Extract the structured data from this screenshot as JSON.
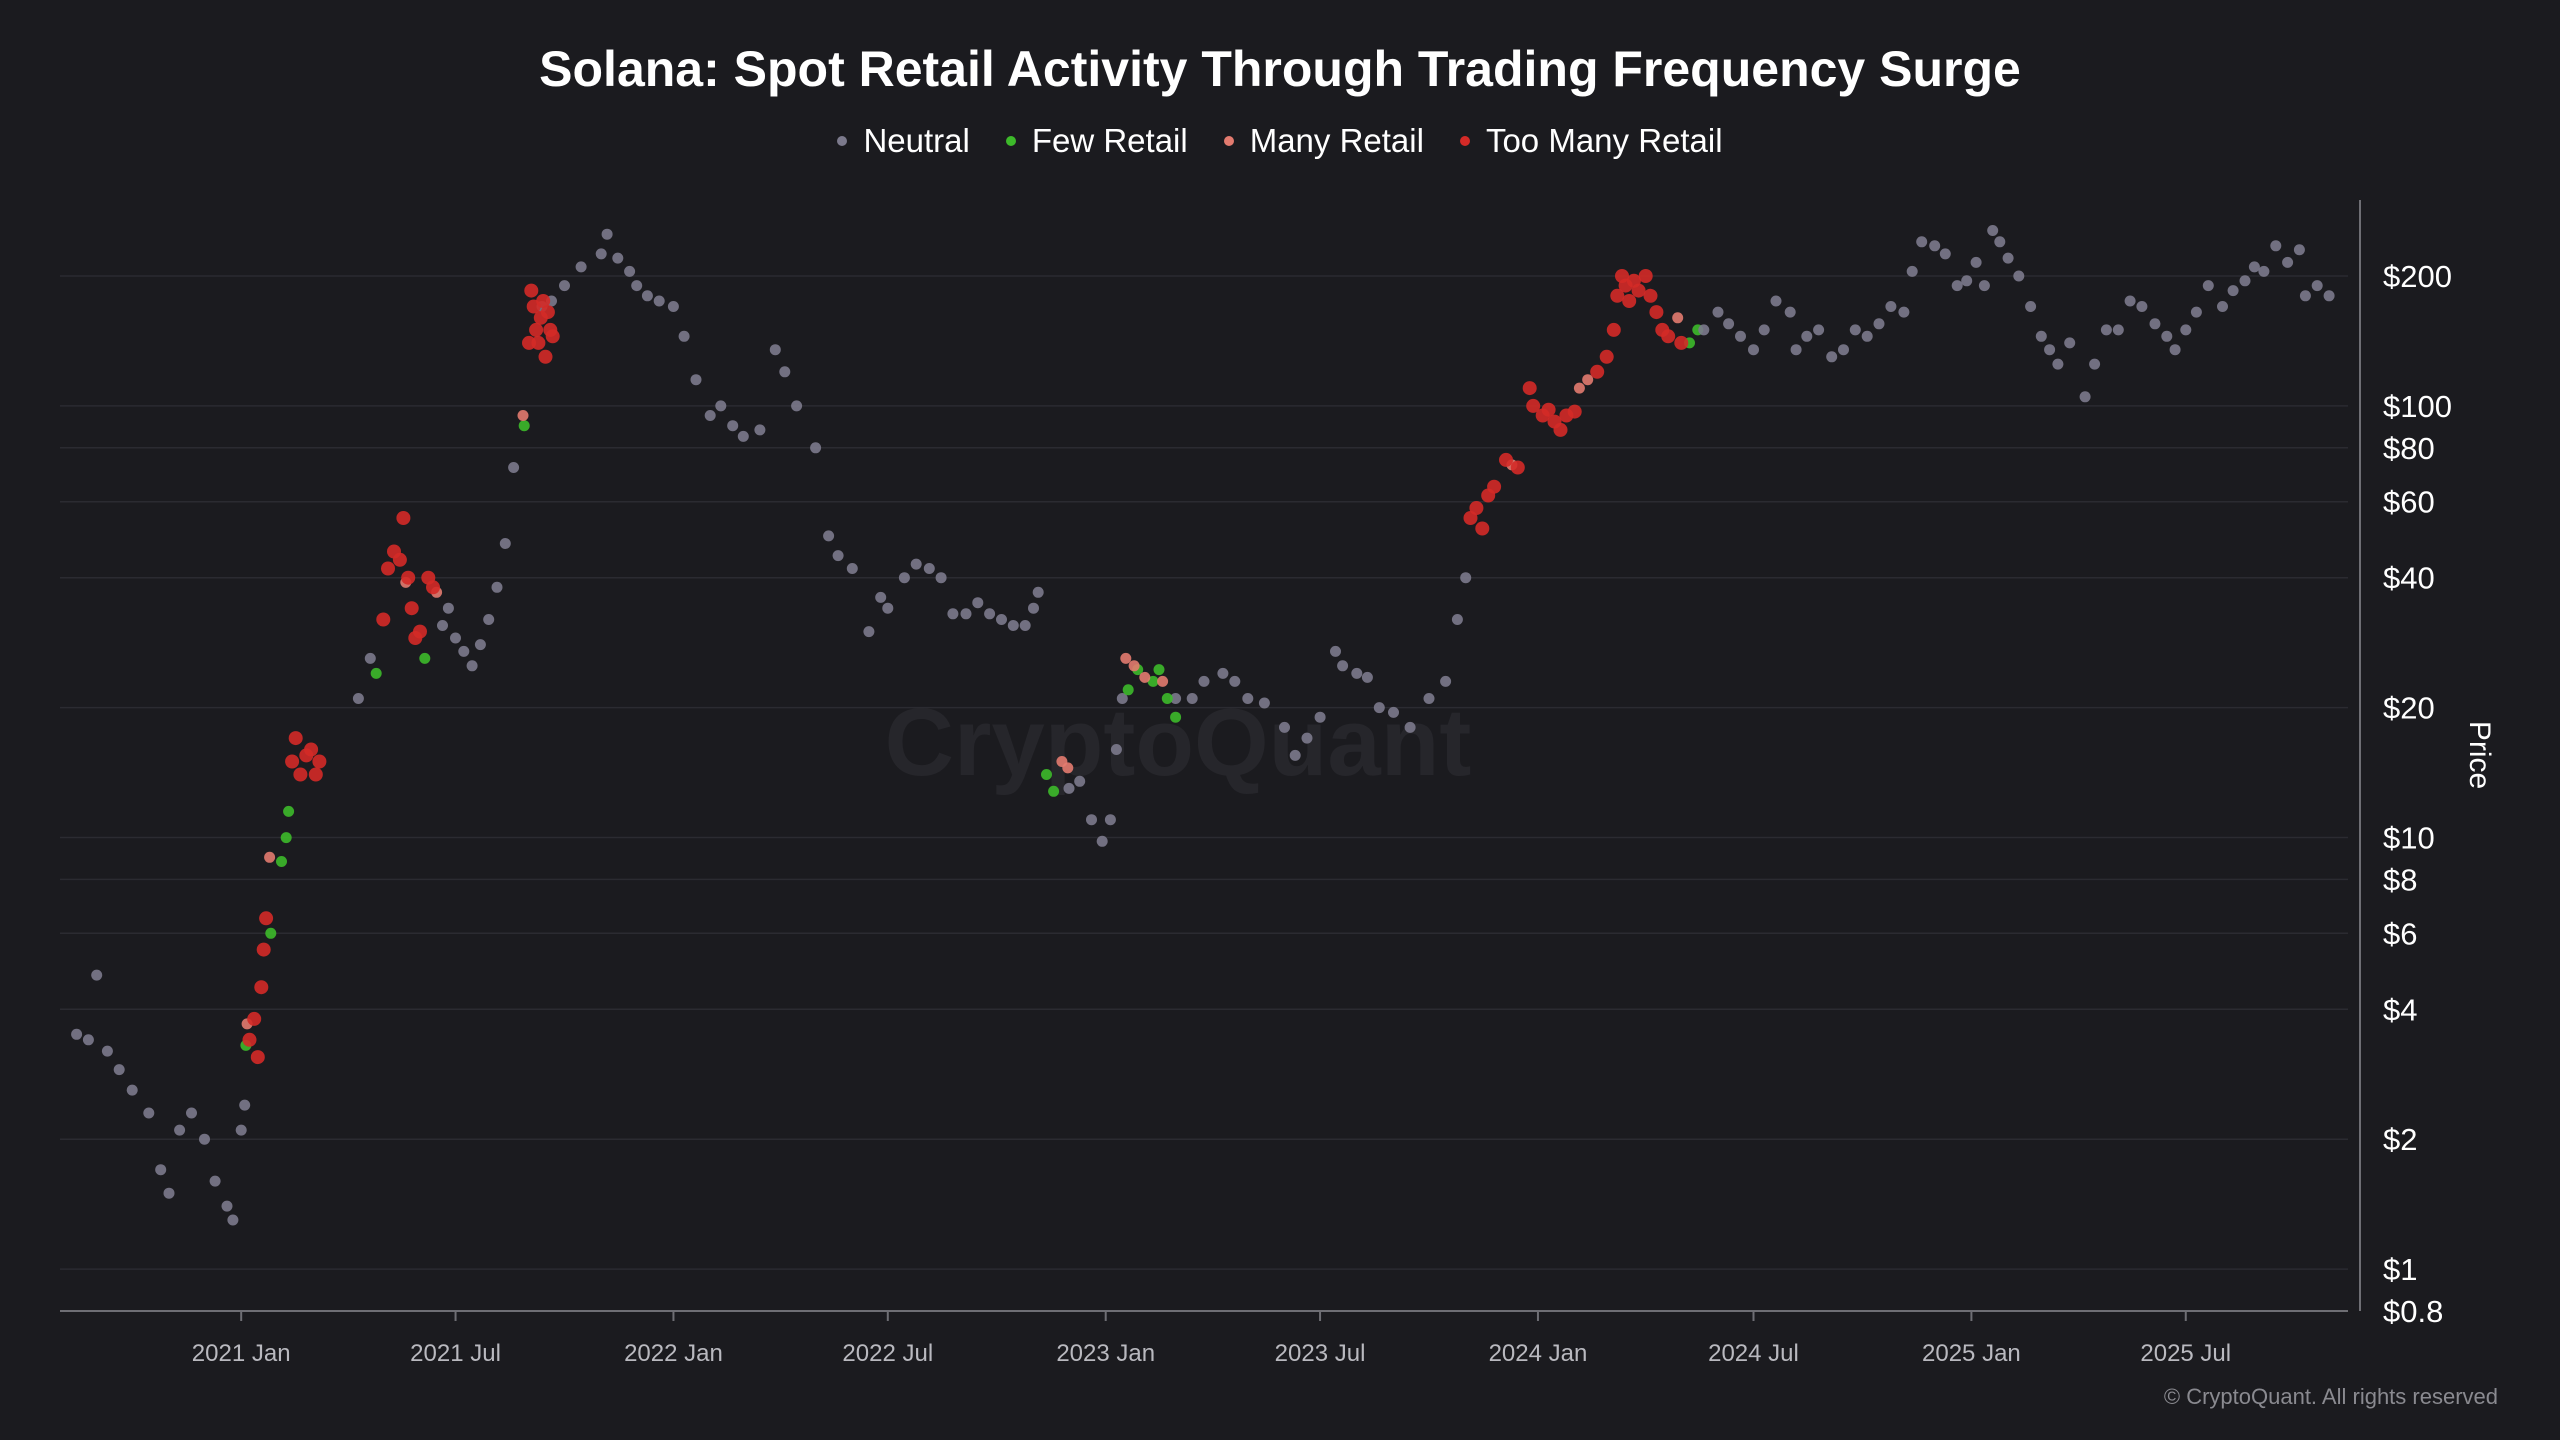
{
  "chart_data": {
    "type": "scatter",
    "title": "Solana: Spot Retail Activity Through Trading Frequency Surge",
    "ylabel": "Price",
    "xlabel": "",
    "y_scale": "log",
    "ylim": [
      0.8,
      300
    ],
    "xlim": [
      "2020-08-01",
      "2025-11-15"
    ],
    "grid": "horizontal",
    "legend_position": "top-center",
    "watermark": "CryptoQuant",
    "y_ticks": [
      {
        "value": 200,
        "label": "$200"
      },
      {
        "value": 100,
        "label": "$100"
      },
      {
        "value": 80,
        "label": "$80"
      },
      {
        "value": 60,
        "label": "$60"
      },
      {
        "value": 40,
        "label": "$40"
      },
      {
        "value": 20,
        "label": "$20"
      },
      {
        "value": 10,
        "label": "$10"
      },
      {
        "value": 8,
        "label": "$8"
      },
      {
        "value": 6,
        "label": "$6"
      },
      {
        "value": 4,
        "label": "$4"
      },
      {
        "value": 2,
        "label": "$2"
      },
      {
        "value": 1,
        "label": "$1"
      },
      {
        "value": 0.8,
        "label": "$0.8"
      }
    ],
    "x_ticks": [
      {
        "date": "2021-01-01",
        "label": "2021 Jan"
      },
      {
        "date": "2021-07-01",
        "label": "2021 Jul"
      },
      {
        "date": "2022-01-01",
        "label": "2022 Jan"
      },
      {
        "date": "2022-07-01",
        "label": "2022 Jul"
      },
      {
        "date": "2023-01-01",
        "label": "2023 Jan"
      },
      {
        "date": "2023-07-01",
        "label": "2023 Jul"
      },
      {
        "date": "2024-01-01",
        "label": "2024 Jan"
      },
      {
        "date": "2024-07-01",
        "label": "2024 Jul"
      },
      {
        "date": "2025-01-01",
        "label": "2025 Jan"
      },
      {
        "date": "2025-07-01",
        "label": "2025 Jul"
      }
    ],
    "series": [
      {
        "name": "Neutral",
        "color": "#7c7a8c",
        "points": [
          [
            "2020-08-15",
            3.5
          ],
          [
            "2020-08-25",
            3.4
          ],
          [
            "2020-09-01",
            4.8
          ],
          [
            "2020-09-10",
            3.2
          ],
          [
            "2020-09-20",
            2.9
          ],
          [
            "2020-10-01",
            2.6
          ],
          [
            "2020-10-15",
            2.3
          ],
          [
            "2020-10-25",
            1.7
          ],
          [
            "2020-11-01",
            1.5
          ],
          [
            "2020-11-10",
            2.1
          ],
          [
            "2020-11-20",
            2.3
          ],
          [
            "2020-12-01",
            2.0
          ],
          [
            "2020-12-10",
            1.6
          ],
          [
            "2020-12-20",
            1.4
          ],
          [
            "2020-12-25",
            1.3
          ],
          [
            "2021-01-01",
            2.1
          ],
          [
            "2021-01-04",
            2.4
          ],
          [
            "2021-04-10",
            21
          ],
          [
            "2021-04-20",
            26
          ],
          [
            "2021-06-20",
            31
          ],
          [
            "2021-06-25",
            34
          ],
          [
            "2021-07-01",
            29
          ],
          [
            "2021-07-08",
            27
          ],
          [
            "2021-07-15",
            25
          ],
          [
            "2021-07-22",
            28
          ],
          [
            "2021-07-29",
            32
          ],
          [
            "2021-08-05",
            38
          ],
          [
            "2021-08-12",
            48
          ],
          [
            "2021-08-19",
            72
          ],
          [
            "2021-09-12",
            170
          ],
          [
            "2021-09-20",
            175
          ],
          [
            "2021-10-01",
            190
          ],
          [
            "2021-10-15",
            210
          ],
          [
            "2021-11-01",
            225
          ],
          [
            "2021-11-06",
            250
          ],
          [
            "2021-11-15",
            220
          ],
          [
            "2021-11-25",
            205
          ],
          [
            "2021-12-01",
            190
          ],
          [
            "2021-12-10",
            180
          ],
          [
            "2021-12-20",
            175
          ],
          [
            "2022-01-01",
            170
          ],
          [
            "2022-01-10",
            145
          ],
          [
            "2022-01-20",
            115
          ],
          [
            "2022-02-01",
            95
          ],
          [
            "2022-02-10",
            100
          ],
          [
            "2022-02-20",
            90
          ],
          [
            "2022-03-01",
            85
          ],
          [
            "2022-03-15",
            88
          ],
          [
            "2022-03-28",
            135
          ],
          [
            "2022-04-05",
            120
          ],
          [
            "2022-04-15",
            100
          ],
          [
            "2022-05-01",
            80
          ],
          [
            "2022-05-12",
            50
          ],
          [
            "2022-05-20",
            45
          ],
          [
            "2022-06-01",
            42
          ],
          [
            "2022-06-15",
            30
          ],
          [
            "2022-06-25",
            36
          ],
          [
            "2022-07-01",
            34
          ],
          [
            "2022-07-15",
            40
          ],
          [
            "2022-07-25",
            43
          ],
          [
            "2022-08-05",
            42
          ],
          [
            "2022-08-15",
            40
          ],
          [
            "2022-08-25",
            33
          ],
          [
            "2022-09-05",
            33
          ],
          [
            "2022-09-15",
            35
          ],
          [
            "2022-09-25",
            33
          ],
          [
            "2022-10-05",
            32
          ],
          [
            "2022-10-15",
            31
          ],
          [
            "2022-10-25",
            31
          ],
          [
            "2022-11-01",
            34
          ],
          [
            "2022-11-05",
            37
          ],
          [
            "2022-12-01",
            13
          ],
          [
            "2022-12-10",
            13.5
          ],
          [
            "2022-12-20",
            11
          ],
          [
            "2022-12-29",
            9.8
          ],
          [
            "2023-01-05",
            11
          ],
          [
            "2023-01-10",
            16
          ],
          [
            "2023-01-15",
            21
          ],
          [
            "2023-03-01",
            21
          ],
          [
            "2023-03-15",
            21
          ],
          [
            "2023-03-25",
            23
          ],
          [
            "2023-04-10",
            24
          ],
          [
            "2023-04-20",
            23
          ],
          [
            "2023-05-01",
            21
          ],
          [
            "2023-05-15",
            20.5
          ],
          [
            "2023-06-01",
            18
          ],
          [
            "2023-06-10",
            15.5
          ],
          [
            "2023-06-20",
            17
          ],
          [
            "2023-07-01",
            19
          ],
          [
            "2023-07-14",
            27
          ],
          [
            "2023-07-20",
            25
          ],
          [
            "2023-08-01",
            24
          ],
          [
            "2023-08-10",
            23.5
          ],
          [
            "2023-08-20",
            20
          ],
          [
            "2023-09-01",
            19.5
          ],
          [
            "2023-09-15",
            18
          ],
          [
            "2023-10-01",
            21
          ],
          [
            "2023-10-15",
            23
          ],
          [
            "2023-10-25",
            32
          ],
          [
            "2023-11-01",
            40
          ]
        ]
      },
      {
        "name": "Few Retail",
        "color": "#3dba2a",
        "points": [
          [
            "2021-01-05",
            3.3
          ],
          [
            "2021-01-26",
            6.0
          ],
          [
            "2021-02-04",
            8.8
          ],
          [
            "2021-02-08",
            10.0
          ],
          [
            "2021-02-10",
            11.5
          ],
          [
            "2021-04-25",
            24
          ],
          [
            "2021-06-05",
            26
          ],
          [
            "2021-08-28",
            90
          ],
          [
            "2022-11-12",
            14
          ],
          [
            "2022-11-18",
            12.8
          ],
          [
            "2023-01-20",
            22
          ],
          [
            "2023-01-28",
            24.5
          ],
          [
            "2023-02-10",
            23
          ],
          [
            "2023-02-15",
            24.5
          ],
          [
            "2023-02-22",
            21
          ],
          [
            "2023-03-01",
            19
          ],
          [
            "2024-05-08",
            140
          ],
          [
            "2024-05-15",
            150
          ]
        ]
      },
      {
        "name": "Many Retail",
        "color": "#e37b6f",
        "points": [
          [
            "2021-01-06",
            3.7
          ],
          [
            "2021-01-25",
            9.0
          ],
          [
            "2021-05-20",
            39
          ],
          [
            "2021-06-15",
            37
          ],
          [
            "2021-08-27",
            95
          ],
          [
            "2022-11-25",
            15
          ],
          [
            "2022-11-30",
            14.5
          ],
          [
            "2023-01-18",
            26
          ],
          [
            "2023-01-25",
            25
          ],
          [
            "2023-02-03",
            23.5
          ],
          [
            "2023-02-18",
            23
          ],
          [
            "2023-12-10",
            73
          ],
          [
            "2024-02-05",
            110
          ],
          [
            "2024-02-12",
            115
          ],
          [
            "2024-04-28",
            160
          ]
        ]
      },
      {
        "name": "Too Many Retail",
        "color": "#d42a27",
        "points": [
          [
            "2021-01-08",
            3.4
          ],
          [
            "2021-01-12",
            3.8
          ],
          [
            "2021-01-15",
            3.1
          ],
          [
            "2021-01-18",
            4.5
          ],
          [
            "2021-01-20",
            5.5
          ],
          [
            "2021-01-22",
            6.5
          ],
          [
            "2021-02-13",
            15
          ],
          [
            "2021-02-16",
            17
          ],
          [
            "2021-02-20",
            14
          ],
          [
            "2021-02-25",
            15.5
          ],
          [
            "2021-03-01",
            16
          ],
          [
            "2021-03-05",
            14
          ],
          [
            "2021-03-08",
            15
          ],
          [
            "2021-05-01",
            32
          ],
          [
            "2021-05-05",
            42
          ],
          [
            "2021-05-10",
            46
          ],
          [
            "2021-05-15",
            44
          ],
          [
            "2021-05-18",
            55
          ],
          [
            "2021-05-22",
            40
          ],
          [
            "2021-05-25",
            34
          ],
          [
            "2021-05-28",
            29
          ],
          [
            "2021-06-01",
            30
          ],
          [
            "2021-06-08",
            40
          ],
          [
            "2021-06-12",
            38
          ],
          [
            "2021-09-01",
            140
          ],
          [
            "2021-09-03",
            185
          ],
          [
            "2021-09-05",
            170
          ],
          [
            "2021-09-07",
            150
          ],
          [
            "2021-09-09",
            140
          ],
          [
            "2021-09-11",
            160
          ],
          [
            "2021-09-13",
            175
          ],
          [
            "2021-09-15",
            130
          ],
          [
            "2021-09-17",
            165
          ],
          [
            "2021-09-19",
            150
          ],
          [
            "2021-09-21",
            145
          ],
          [
            "2023-11-05",
            55
          ],
          [
            "2023-11-10",
            58
          ],
          [
            "2023-11-15",
            52
          ],
          [
            "2023-11-20",
            62
          ],
          [
            "2023-11-25",
            65
          ],
          [
            "2023-12-05",
            75
          ],
          [
            "2023-12-15",
            72
          ],
          [
            "2023-12-25",
            110
          ],
          [
            "2023-12-28",
            100
          ],
          [
            "2024-01-05",
            95
          ],
          [
            "2024-01-10",
            98
          ],
          [
            "2024-01-15",
            92
          ],
          [
            "2024-01-20",
            88
          ],
          [
            "2024-01-25",
            95
          ],
          [
            "2024-02-01",
            97
          ],
          [
            "2024-02-20",
            120
          ],
          [
            "2024-02-28",
            130
          ],
          [
            "2024-03-05",
            150
          ],
          [
            "2024-03-08",
            180
          ],
          [
            "2024-03-12",
            200
          ],
          [
            "2024-03-15",
            190
          ],
          [
            "2024-03-18",
            175
          ],
          [
            "2024-03-22",
            195
          ],
          [
            "2024-03-26",
            185
          ],
          [
            "2024-04-01",
            200
          ],
          [
            "2024-04-05",
            180
          ],
          [
            "2024-04-10",
            165
          ],
          [
            "2024-04-15",
            150
          ],
          [
            "2024-04-20",
            145
          ],
          [
            "2024-05-01",
            140
          ]
        ]
      },
      {
        "name": "Neutral",
        "color": "#7c7a8c",
        "points": [
          [
            "2024-05-20",
            150
          ],
          [
            "2024-06-01",
            165
          ],
          [
            "2024-06-10",
            155
          ],
          [
            "2024-06-20",
            145
          ],
          [
            "2024-07-01",
            135
          ],
          [
            "2024-07-10",
            150
          ],
          [
            "2024-07-20",
            175
          ],
          [
            "2024-08-01",
            165
          ],
          [
            "2024-08-06",
            135
          ],
          [
            "2024-08-15",
            145
          ],
          [
            "2024-08-25",
            150
          ],
          [
            "2024-09-05",
            130
          ],
          [
            "2024-09-15",
            135
          ],
          [
            "2024-09-25",
            150
          ],
          [
            "2024-10-05",
            145
          ],
          [
            "2024-10-15",
            155
          ],
          [
            "2024-10-25",
            170
          ],
          [
            "2024-11-05",
            165
          ],
          [
            "2024-11-12",
            205
          ],
          [
            "2024-11-20",
            240
          ],
          [
            "2024-12-01",
            235
          ],
          [
            "2024-12-10",
            225
          ],
          [
            "2024-12-20",
            190
          ],
          [
            "2024-12-28",
            195
          ],
          [
            "2025-01-05",
            215
          ],
          [
            "2025-01-12",
            190
          ],
          [
            "2025-01-19",
            255
          ],
          [
            "2025-01-25",
            240
          ],
          [
            "2025-02-01",
            220
          ],
          [
            "2025-02-10",
            200
          ],
          [
            "2025-02-20",
            170
          ],
          [
            "2025-03-01",
            145
          ],
          [
            "2025-03-08",
            135
          ],
          [
            "2025-03-15",
            125
          ],
          [
            "2025-03-25",
            140
          ],
          [
            "2025-04-07",
            105
          ],
          [
            "2025-04-15",
            125
          ],
          [
            "2025-04-25",
            150
          ],
          [
            "2025-05-05",
            150
          ],
          [
            "2025-05-15",
            175
          ],
          [
            "2025-05-25",
            170
          ],
          [
            "2025-06-05",
            155
          ],
          [
            "2025-06-15",
            145
          ],
          [
            "2025-06-22",
            135
          ],
          [
            "2025-07-01",
            150
          ],
          [
            "2025-07-10",
            165
          ],
          [
            "2025-07-20",
            190
          ],
          [
            "2025-08-01",
            170
          ],
          [
            "2025-08-10",
            185
          ],
          [
            "2025-08-20",
            195
          ],
          [
            "2025-08-28",
            210
          ],
          [
            "2025-09-05",
            205
          ],
          [
            "2025-09-15",
            235
          ],
          [
            "2025-09-25",
            215
          ],
          [
            "2025-10-05",
            230
          ],
          [
            "2025-10-10",
            180
          ],
          [
            "2025-10-20",
            190
          ],
          [
            "2025-10-30",
            180
          ]
        ]
      }
    ]
  },
  "legend": [
    {
      "label": "Neutral",
      "color": "#7c7a8c"
    },
    {
      "label": "Few Retail",
      "color": "#3dba2a"
    },
    {
      "label": "Many Retail",
      "color": "#e37b6f"
    },
    {
      "label": "Too Many Retail",
      "color": "#d42a27"
    }
  ],
  "watermark": "CryptoQuant",
  "copyright": "© CryptoQuant. All rights reserved"
}
